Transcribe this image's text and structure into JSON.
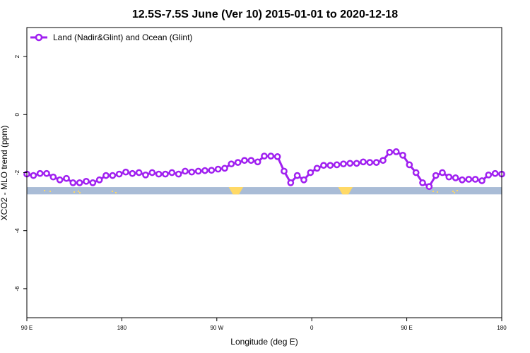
{
  "chart_data": {
    "type": "line",
    "title": "12.5S-7.5S June (Ver 10)   2015-01-01 to 2020-12-18",
    "xlabel": "Longitude (deg E)",
    "ylabel": "XCO2 - MLO trend (ppm)",
    "xlim": [
      90,
      450
    ],
    "ylim": [
      -7,
      3
    ],
    "x_ticks": [
      {
        "value": 90,
        "label": "90 E"
      },
      {
        "value": 162,
        "label": "180"
      },
      {
        "value": 234,
        "label": "90 W"
      },
      {
        "value": 306,
        "label": "0"
      },
      {
        "value": 378,
        "label": "90 E"
      },
      {
        "value": 450,
        "label": "180"
      }
    ],
    "y_ticks": [
      {
        "value": 2,
        "label": "2"
      },
      {
        "value": 0,
        "label": "0"
      },
      {
        "value": -2,
        "label": "-2"
      },
      {
        "value": -4,
        "label": "-4"
      },
      {
        "value": -6,
        "label": "-6"
      }
    ],
    "grid": false,
    "legend_position": "top-left",
    "series": [
      {
        "name": "Land (Nadir&Glint) and Ocean (Glint)",
        "color": "#a020f0",
        "marker": "open-circle",
        "x": [
          90,
          95,
          100,
          105,
          110,
          115,
          120,
          125,
          130,
          135,
          140,
          145,
          150,
          155,
          160,
          165,
          170,
          175,
          180,
          185,
          190,
          195,
          200,
          205,
          210,
          215,
          220,
          225,
          230,
          235,
          240,
          245,
          250,
          255,
          260,
          265,
          270,
          275,
          280,
          285,
          290,
          295,
          300,
          305,
          310,
          315,
          320,
          325,
          330,
          335,
          340,
          345,
          350,
          355,
          360,
          365,
          370,
          375,
          380,
          385,
          390,
          395,
          400,
          405,
          410,
          415,
          420,
          425,
          430,
          435,
          440,
          445,
          450
        ],
        "y": [
          -2.05,
          -2.1,
          -2.03,
          -2.03,
          -2.15,
          -2.25,
          -2.2,
          -2.35,
          -2.35,
          -2.3,
          -2.35,
          -2.25,
          -2.1,
          -2.1,
          -2.05,
          -1.98,
          -2.03,
          -2.0,
          -2.08,
          -2.0,
          -2.05,
          -2.05,
          -2.0,
          -2.05,
          -1.95,
          -1.98,
          -1.95,
          -1.93,
          -1.92,
          -1.88,
          -1.85,
          -1.7,
          -1.65,
          -1.58,
          -1.58,
          -1.63,
          -1.43,
          -1.43,
          -1.45,
          -1.95,
          -2.35,
          -2.1,
          -2.25,
          -2.0,
          -1.85,
          -1.75,
          -1.75,
          -1.73,
          -1.7,
          -1.68,
          -1.68,
          -1.63,
          -1.65,
          -1.65,
          -1.58,
          -1.3,
          -1.28,
          -1.4,
          -1.73,
          -2.0,
          -2.35,
          -2.48,
          -2.1,
          -2.0,
          -2.15,
          -2.18,
          -2.25,
          -2.23,
          -2.23,
          -2.28,
          -2.08,
          -2.03,
          -2.05
        ]
      }
    ],
    "surface_band": {
      "y_range": [
        -2.5,
        -2.75
      ],
      "ocean_color": "#a9bcd6",
      "land_color": "#ffd966",
      "land_segments": [
        [
          243,
          254
        ],
        [
          326,
          337
        ]
      ]
    }
  }
}
